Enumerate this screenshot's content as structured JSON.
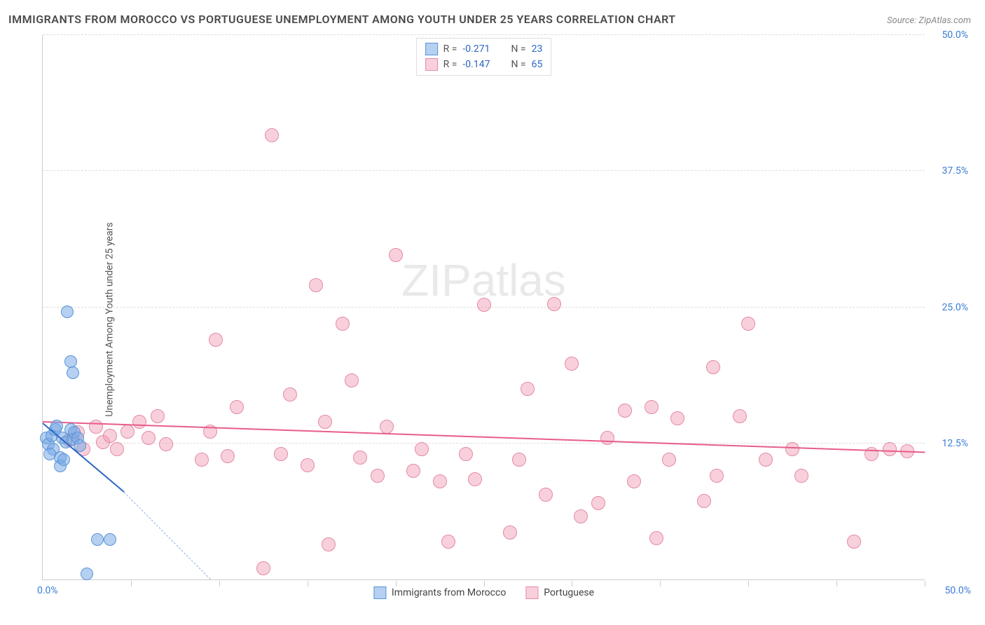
{
  "title": "IMMIGRANTS FROM MOROCCO VS PORTUGUESE UNEMPLOYMENT AMONG YOUTH UNDER 25 YEARS CORRELATION CHART",
  "source": "Source: ZipAtlas.com",
  "y_axis_label": "Unemployment Among Youth under 25 years",
  "watermark": "ZIPatlas",
  "chart": {
    "type": "scatter-correlation",
    "xlim": [
      0,
      50
    ],
    "ylim": [
      0,
      50
    ],
    "x_origin_label": "0.0%",
    "x_max_label": "50.0%",
    "y_ticks": [
      {
        "v": 12.5,
        "label": "12.5%"
      },
      {
        "v": 25.0,
        "label": "25.0%"
      },
      {
        "v": 37.5,
        "label": "37.5%"
      },
      {
        "v": 50.0,
        "label": "50.0%"
      }
    ],
    "x_tick_positions": [
      5,
      10,
      15,
      20,
      25,
      30,
      35,
      40,
      45,
      50
    ],
    "grid_color": "#dddddd",
    "axis_color": "#cccccc",
    "background_color": "#ffffff",
    "tick_label_color": "#3b7dd8",
    "title_color": "#4a4a4a"
  },
  "series": [
    {
      "key": "morocco",
      "label": "Immigrants from Morocco",
      "marker_color_fill": "rgba(120,170,230,0.55)",
      "marker_color_stroke": "#5b93d6",
      "marker_radius": 9,
      "trend_color": "#2b66c4",
      "trend": {
        "x1": 0,
        "y1": 14.3,
        "x2": 4.6,
        "y2": 8.0,
        "dash_to_x": 9.5,
        "dash_to_y": 0
      },
      "R": "-0.271",
      "N": "23",
      "points": [
        [
          0.2,
          13.0
        ],
        [
          0.3,
          12.4
        ],
        [
          0.5,
          13.2
        ],
        [
          0.6,
          12.0
        ],
        [
          0.7,
          13.8
        ],
        [
          0.8,
          14.1
        ],
        [
          1.0,
          11.2
        ],
        [
          1.1,
          13.0
        ],
        [
          1.3,
          12.6
        ],
        [
          1.0,
          10.4
        ],
        [
          1.6,
          13.8
        ],
        [
          1.7,
          12.9
        ],
        [
          1.8,
          13.5
        ],
        [
          2.0,
          13.0
        ],
        [
          2.1,
          12.3
        ],
        [
          1.2,
          11.0
        ],
        [
          0.4,
          11.5
        ],
        [
          1.6,
          20.0
        ],
        [
          1.7,
          19.0
        ],
        [
          1.4,
          24.6
        ],
        [
          3.1,
          3.7
        ],
        [
          3.8,
          3.7
        ],
        [
          2.5,
          0.5
        ]
      ]
    },
    {
      "key": "portuguese",
      "label": "Portuguese",
      "marker_color_fill": "rgba(240,150,175,0.45)",
      "marker_color_stroke": "#e48aa5",
      "marker_radius": 10,
      "trend_color": "#e85d8a",
      "trend": {
        "x1": 0,
        "y1": 14.4,
        "x2": 50,
        "y2": 11.6
      },
      "R": "-0.147",
      "N": "65",
      "points": [
        [
          1.5,
          12.8
        ],
        [
          2.0,
          13.5
        ],
        [
          2.3,
          12.0
        ],
        [
          3.0,
          14.0
        ],
        [
          3.4,
          12.6
        ],
        [
          3.8,
          13.2
        ],
        [
          4.2,
          12.0
        ],
        [
          4.8,
          13.6
        ],
        [
          5.5,
          14.5
        ],
        [
          6.0,
          13.0
        ],
        [
          6.5,
          15.0
        ],
        [
          7.0,
          12.4
        ],
        [
          9.0,
          11.0
        ],
        [
          9.5,
          13.6
        ],
        [
          9.8,
          22.0
        ],
        [
          10.5,
          11.3
        ],
        [
          11.0,
          15.8
        ],
        [
          12.5,
          1.0
        ],
        [
          13.0,
          40.8
        ],
        [
          13.5,
          11.5
        ],
        [
          14.0,
          17.0
        ],
        [
          15.0,
          10.5
        ],
        [
          15.5,
          27.0
        ],
        [
          16.0,
          14.5
        ],
        [
          16.2,
          3.2
        ],
        [
          17.0,
          23.5
        ],
        [
          17.5,
          18.3
        ],
        [
          18.0,
          11.2
        ],
        [
          19.0,
          9.5
        ],
        [
          19.5,
          14.0
        ],
        [
          20.0,
          29.8
        ],
        [
          21.0,
          10.0
        ],
        [
          21.5,
          12.0
        ],
        [
          22.5,
          9.0
        ],
        [
          23.0,
          3.5
        ],
        [
          24.0,
          11.5
        ],
        [
          24.5,
          9.2
        ],
        [
          25.0,
          25.2
        ],
        [
          26.5,
          4.3
        ],
        [
          27.0,
          11.0
        ],
        [
          27.5,
          17.5
        ],
        [
          28.5,
          7.8
        ],
        [
          29.0,
          25.3
        ],
        [
          30.0,
          19.8
        ],
        [
          30.5,
          5.8
        ],
        [
          31.5,
          7.0
        ],
        [
          32.0,
          13.0
        ],
        [
          33.0,
          15.5
        ],
        [
          33.5,
          9.0
        ],
        [
          34.5,
          15.8
        ],
        [
          34.8,
          3.8
        ],
        [
          35.5,
          11.0
        ],
        [
          36.0,
          14.8
        ],
        [
          37.5,
          7.2
        ],
        [
          38.0,
          19.5
        ],
        [
          38.2,
          9.5
        ],
        [
          39.5,
          15.0
        ],
        [
          40.0,
          23.5
        ],
        [
          41.0,
          11.0
        ],
        [
          42.5,
          12.0
        ],
        [
          43.0,
          9.5
        ],
        [
          46.0,
          3.5
        ],
        [
          47.0,
          11.5
        ],
        [
          48.0,
          12.0
        ],
        [
          49.0,
          11.8
        ]
      ]
    }
  ],
  "legend_top": {
    "r_label": "R =",
    "n_label": "N =",
    "value_color": "#2b66c4",
    "label_color": "#555555"
  },
  "legend_bottom_swatch_size": 18
}
